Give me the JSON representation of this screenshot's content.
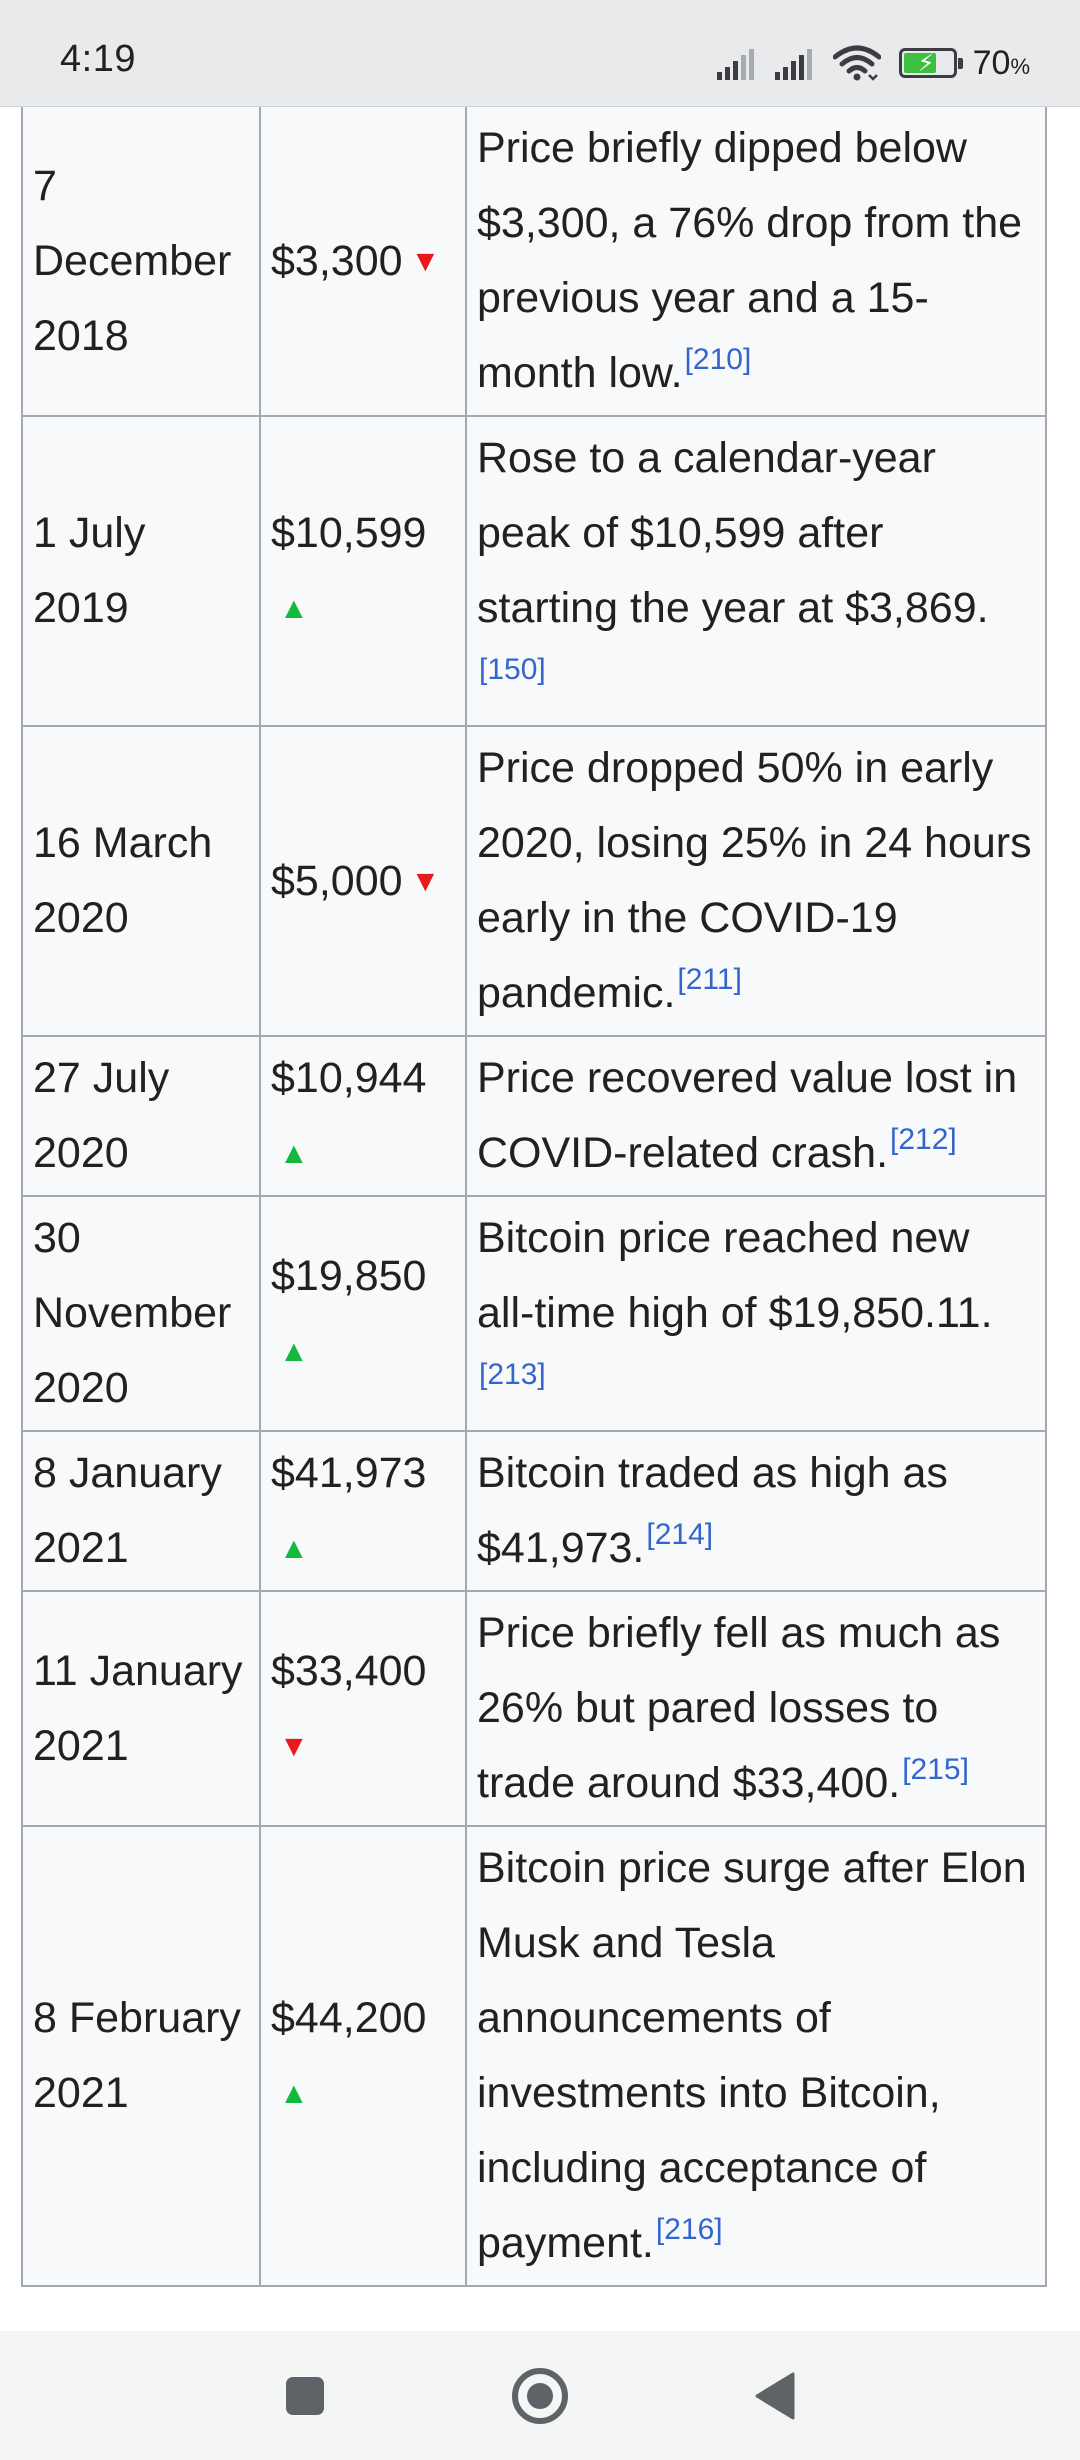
{
  "status_bar": {
    "time": "4:19",
    "battery_percent": "70",
    "battery_percent_sign": "%",
    "battery_level": 0.7
  },
  "table": {
    "rows": [
      {
        "date": "7 December 2018",
        "price": "$3,300",
        "trend": "down",
        "trend_glyph": "▼",
        "event": "Price briefly dipped below $3,300, a 76% drop from the previous year and a 15-month low.",
        "ref": "[210]"
      },
      {
        "date": "1 July 2019",
        "price": "$10,599",
        "trend": "up",
        "trend_glyph": "▲",
        "event": "Rose to a calendar-year peak of $10,599 after starting the year at $3,869.",
        "ref": "[150]"
      },
      {
        "date": "16 March 2020",
        "price": "$5,000",
        "trend": "down",
        "trend_glyph": "▼",
        "event": "Price dropped 50% in early 2020, losing 25% in 24 hours early in the COVID-19 pandemic.",
        "ref": "[211]"
      },
      {
        "date": "27 July 2020",
        "price": "$10,944",
        "trend": "up",
        "trend_glyph": "▲",
        "event": "Price recovered value lost in COVID-related crash.",
        "ref": "[212]"
      },
      {
        "date": "30 November 2020",
        "price": "$19,850",
        "trend": "up",
        "trend_glyph": "▲",
        "event": "Bitcoin price reached new all-time high of $19,850.11.",
        "ref": "[213]"
      },
      {
        "date": "8 January 2021",
        "price": "$41,973",
        "trend": "up",
        "trend_glyph": "▲",
        "event": "Bitcoin traded as high as $41,973.",
        "ref": "[214]"
      },
      {
        "date": "11 January 2021",
        "price": "$33,400",
        "trend": "down",
        "trend_glyph": "▼",
        "event": "Price briefly fell as much as 26% but pared losses to trade around $33,400.",
        "ref": "[215]"
      },
      {
        "date": "8 February 2021",
        "price": "$44,200",
        "trend": "up",
        "trend_glyph": "▲",
        "event": "Bitcoin price surge after Elon Musk and Tesla announcements of investments into Bitcoin, including acceptance of payment.",
        "ref": "[216]"
      }
    ]
  },
  "icons": {
    "signal_1": "signal-icon",
    "signal_2": "signal-icon",
    "wifi": "wifi-icon",
    "battery": "battery-icon",
    "nav_recents": "recents-square-icon",
    "nav_home": "home-circle-icon",
    "nav_back": "back-triangle-icon"
  },
  "colors": {
    "trend_down": "#e8191a",
    "trend_up": "#14b83a",
    "reference_link": "#3366cc",
    "table_border": "#a2a9b1",
    "table_background": "#f8f9fa"
  }
}
